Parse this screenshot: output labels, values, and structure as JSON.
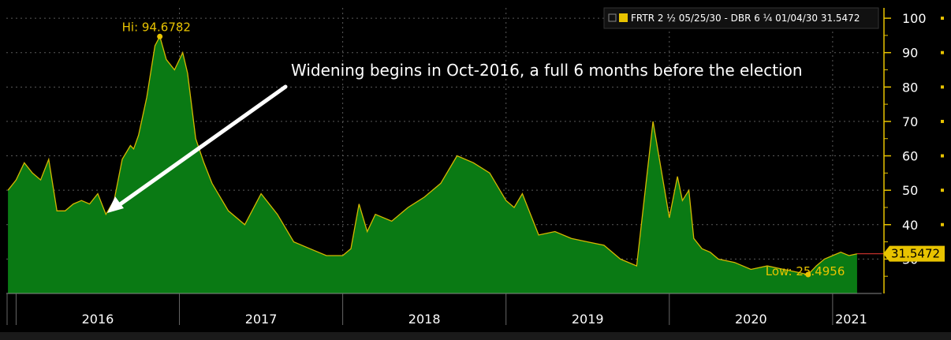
{
  "colors": {
    "background": "#000000",
    "area_fill": "#0a7a14",
    "area_line": "#d4b800",
    "accent": "#e8c300",
    "last_line": "#c0302a",
    "grid": "#5a5a5a"
  },
  "legend": {
    "label": "FRTR 2 ½ 05/25/30 - DBR 6 ¼ 01/04/30 31.5472"
  },
  "annotation": {
    "text": "Widening begins in Oct-2016, a full 6 months before the election"
  },
  "chart_data": {
    "type": "area",
    "ylim": [
      20,
      103
    ],
    "xlim": [
      2015.94,
      2021.3
    ],
    "y_ticks": [
      30,
      40,
      50,
      60,
      70,
      80,
      90,
      100
    ],
    "x_ticks": [
      "2016",
      "2017",
      "2018",
      "2019",
      "2020",
      "2021"
    ],
    "grid": true,
    "legend_position": "top-right",
    "high": {
      "label": "Hi: 94.6782",
      "value": 94.6782,
      "x": 2016.88
    },
    "low": {
      "label": "Low: 25.4956",
      "value": 25.4956,
      "x": 2020.85
    },
    "last": {
      "label": "31.5472",
      "value": 31.5472
    },
    "series": [
      {
        "x": [
          2015.95,
          2016.0,
          2016.05,
          2016.1,
          2016.15,
          2016.2,
          2016.25,
          2016.3,
          2016.35,
          2016.4,
          2016.45,
          2016.5,
          2016.55,
          2016.6,
          2016.65,
          2016.7,
          2016.72,
          2016.75,
          2016.8,
          2016.85,
          2016.88,
          2016.92,
          2016.97,
          2017.02,
          2017.05,
          2017.1,
          2017.15,
          2017.2,
          2017.3,
          2017.4,
          2017.5,
          2017.6,
          2017.7,
          2017.8,
          2017.9,
          2018.0,
          2018.05,
          2018.1,
          2018.15,
          2018.2,
          2018.3,
          2018.4,
          2018.5,
          2018.6,
          2018.7,
          2018.8,
          2018.9,
          2019.0,
          2019.05,
          2019.1,
          2019.2,
          2019.3,
          2019.4,
          2019.5,
          2019.6,
          2019.7,
          2019.8,
          2019.9,
          2020.0,
          2020.05,
          2020.08,
          2020.12,
          2020.15,
          2020.2,
          2020.25,
          2020.3,
          2020.4,
          2020.5,
          2020.6,
          2020.7,
          2020.8,
          2020.85,
          2020.9,
          2020.95,
          2021.0,
          2021.05,
          2021.1,
          2021.15
        ],
        "values": [
          50,
          53,
          58,
          55,
          53,
          59,
          44,
          44,
          46,
          47,
          46,
          49,
          43,
          47,
          59,
          63,
          62,
          66,
          77,
          92,
          94.7,
          88,
          85,
          90,
          84,
          65,
          58,
          52,
          44,
          40,
          49,
          43,
          35,
          33,
          31,
          31,
          33,
          46,
          38,
          43,
          41,
          45,
          48,
          52,
          60,
          58,
          55,
          47,
          45,
          49,
          37,
          38,
          36,
          35,
          34,
          30,
          28,
          70,
          42,
          54,
          47,
          50,
          36,
          33,
          32,
          30,
          29,
          27,
          28,
          27,
          26,
          25.5,
          28,
          30,
          31,
          32,
          31,
          31.5
        ]
      }
    ]
  }
}
